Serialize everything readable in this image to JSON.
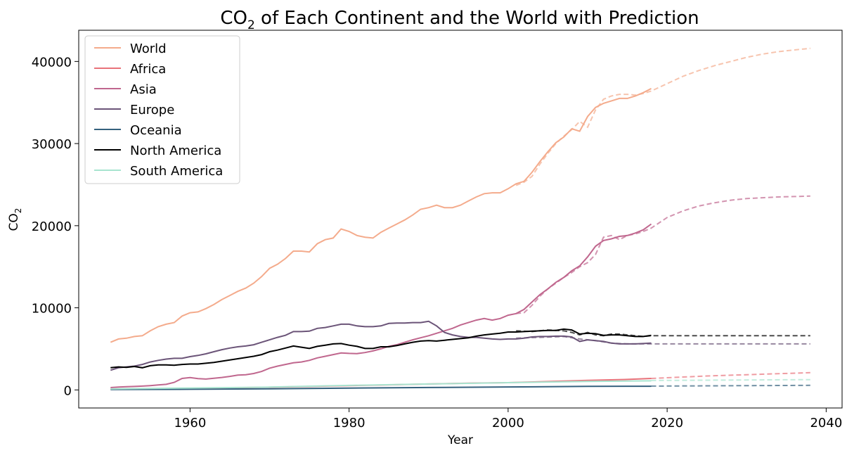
{
  "chart_data": {
    "type": "line",
    "title_main": "CO",
    "title_sub": "2",
    "title_rest": " of Each Continent and the World with Prediction",
    "xlabel": "Year",
    "ylabel_main": "CO",
    "ylabel_sub": "2",
    "xlim": [
      1946,
      2042
    ],
    "ylim": [
      -2200,
      43800
    ],
    "xticks": [
      1960,
      1980,
      2000,
      2020,
      2040
    ],
    "yticks": [
      0,
      10000,
      20000,
      30000,
      40000
    ],
    "grid": false,
    "legend_position": "top-left",
    "series": [
      {
        "name": "World",
        "color": "#f4ab8c",
        "x": [
          1950,
          1951,
          1952,
          1953,
          1954,
          1955,
          1956,
          1957,
          1958,
          1959,
          1960,
          1961,
          1962,
          1963,
          1964,
          1965,
          1966,
          1967,
          1968,
          1969,
          1970,
          1971,
          1972,
          1973,
          1974,
          1975,
          1976,
          1977,
          1978,
          1979,
          1980,
          1981,
          1982,
          1983,
          1984,
          1985,
          1986,
          1987,
          1988,
          1989,
          1990,
          1991,
          1992,
          1993,
          1994,
          1995,
          1996,
          1997,
          1998,
          1999,
          2000,
          2001,
          2002,
          2003,
          2004,
          2005,
          2006,
          2007,
          2008,
          2009,
          2010,
          2011,
          2012,
          2013,
          2014,
          2015,
          2016,
          2017,
          2018
        ],
        "y": [
          5800,
          6200,
          6300,
          6500,
          6600,
          7200,
          7700,
          8000,
          8200,
          9000,
          9400,
          9500,
          9900,
          10400,
          11000,
          11500,
          12000,
          12400,
          13000,
          13800,
          14800,
          15300,
          16000,
          16900,
          16900,
          16800,
          17800,
          18300,
          18500,
          19600,
          19300,
          18800,
          18600,
          18500,
          19200,
          19700,
          20200,
          20700,
          21300,
          22000,
          22200,
          22500,
          22200,
          22200,
          22500,
          23000,
          23500,
          23900,
          24000,
          24000,
          24500,
          25100,
          25400,
          26500,
          27800,
          29000,
          30100,
          30800,
          31800,
          31500,
          33300,
          34400,
          34900,
          35200,
          35500,
          35500,
          35800,
          36200,
          36700
        ]
      },
      {
        "name": "Africa",
        "color": "#e8727a",
        "x": [
          1950,
          1955,
          1960,
          1965,
          1970,
          1975,
          1980,
          1985,
          1990,
          1995,
          2000,
          2005,
          2010,
          2015,
          2018
        ],
        "y": [
          100,
          150,
          200,
          250,
          330,
          420,
          520,
          620,
          720,
          820,
          880,
          1020,
          1170,
          1280,
          1400
        ]
      },
      {
        "name": "Asia",
        "color": "#c0678e",
        "x": [
          1950,
          1951,
          1952,
          1953,
          1954,
          1955,
          1956,
          1957,
          1958,
          1959,
          1960,
          1961,
          1962,
          1963,
          1964,
          1965,
          1966,
          1967,
          1968,
          1969,
          1970,
          1971,
          1972,
          1973,
          1974,
          1975,
          1976,
          1977,
          1978,
          1979,
          1980,
          1981,
          1982,
          1983,
          1984,
          1985,
          1986,
          1987,
          1988,
          1989,
          1990,
          1991,
          1992,
          1993,
          1994,
          1995,
          1996,
          1997,
          1998,
          1999,
          2000,
          2001,
          2002,
          2003,
          2004,
          2005,
          2006,
          2007,
          2008,
          2009,
          2010,
          2011,
          2012,
          2013,
          2014,
          2015,
          2016,
          2017,
          2018
        ],
        "y": [
          280,
          340,
          390,
          420,
          460,
          520,
          600,
          680,
          920,
          1400,
          1500,
          1380,
          1320,
          1420,
          1520,
          1650,
          1800,
          1850,
          2000,
          2250,
          2650,
          2900,
          3100,
          3300,
          3400,
          3600,
          3900,
          4100,
          4300,
          4500,
          4450,
          4420,
          4550,
          4750,
          5000,
          5300,
          5500,
          5800,
          6100,
          6350,
          6600,
          6900,
          7200,
          7500,
          7900,
          8200,
          8500,
          8700,
          8500,
          8700,
          9100,
          9300,
          9800,
          10700,
          11600,
          12300,
          13100,
          13700,
          14500,
          15100,
          16200,
          17500,
          18200,
          18400,
          18700,
          18800,
          19100,
          19500,
          20200
        ]
      },
      {
        "name": "Europe",
        "color": "#6b5478",
        "x": [
          1950,
          1951,
          1952,
          1953,
          1954,
          1955,
          1956,
          1957,
          1958,
          1959,
          1960,
          1961,
          1962,
          1963,
          1964,
          1965,
          1966,
          1967,
          1968,
          1969,
          1970,
          1971,
          1972,
          1973,
          1974,
          1975,
          1976,
          1977,
          1978,
          1979,
          1980,
          1981,
          1982,
          1983,
          1984,
          1985,
          1986,
          1987,
          1988,
          1989,
          1990,
          1991,
          1992,
          1993,
          1994,
          1995,
          1996,
          1997,
          1998,
          1999,
          2000,
          2001,
          2002,
          2003,
          2004,
          2005,
          2006,
          2007,
          2008,
          2009,
          2010,
          2011,
          2012,
          2013,
          2014,
          2015,
          2016,
          2017,
          2018
        ],
        "y": [
          2400,
          2700,
          2800,
          2900,
          3100,
          3400,
          3600,
          3750,
          3850,
          3850,
          4050,
          4200,
          4400,
          4650,
          4900,
          5100,
          5250,
          5350,
          5500,
          5800,
          6100,
          6400,
          6650,
          7100,
          7100,
          7150,
          7500,
          7600,
          7800,
          8000,
          8000,
          7800,
          7700,
          7700,
          7800,
          8100,
          8150,
          8150,
          8200,
          8200,
          8350,
          7800,
          7000,
          6700,
          6500,
          6400,
          6400,
          6300,
          6200,
          6150,
          6200,
          6200,
          6300,
          6450,
          6500,
          6500,
          6550,
          6550,
          6450,
          5900,
          6100,
          6000,
          5900,
          5700,
          5600,
          5600,
          5600,
          5650,
          5700
        ]
      },
      {
        "name": "Oceania",
        "color": "#35617e",
        "x": [
          1950,
          1960,
          1970,
          1980,
          1990,
          2000,
          2010,
          2018
        ],
        "y": [
          50,
          80,
          140,
          220,
          290,
          360,
          430,
          450
        ]
      },
      {
        "name": "North America",
        "color": "#000000",
        "x": [
          1950,
          1951,
          1952,
          1953,
          1954,
          1955,
          1956,
          1957,
          1958,
          1959,
          1960,
          1961,
          1962,
          1963,
          1964,
          1965,
          1966,
          1967,
          1968,
          1969,
          1970,
          1971,
          1972,
          1973,
          1974,
          1975,
          1976,
          1977,
          1978,
          1979,
          1980,
          1981,
          1982,
          1983,
          1984,
          1985,
          1986,
          1987,
          1988,
          1989,
          1990,
          1991,
          1992,
          1993,
          1994,
          1995,
          1996,
          1997,
          1998,
          1999,
          2000,
          2001,
          2002,
          2003,
          2004,
          2005,
          2006,
          2007,
          2008,
          2009,
          2010,
          2011,
          2012,
          2013,
          2014,
          2015,
          2016,
          2017,
          2018
        ],
        "y": [
          2700,
          2800,
          2750,
          2850,
          2700,
          2950,
          3050,
          3050,
          3000,
          3100,
          3150,
          3150,
          3250,
          3350,
          3500,
          3650,
          3800,
          3950,
          4100,
          4300,
          4650,
          4850,
          5100,
          5350,
          5200,
          5050,
          5300,
          5450,
          5600,
          5650,
          5450,
          5300,
          5050,
          5050,
          5250,
          5250,
          5400,
          5600,
          5800,
          5950,
          6000,
          5950,
          6050,
          6150,
          6250,
          6350,
          6550,
          6700,
          6800,
          6900,
          7050,
          7050,
          7100,
          7150,
          7200,
          7250,
          7250,
          7400,
          7300,
          6800,
          6900,
          6850,
          6650,
          6700,
          6700,
          6600,
          6500,
          6500,
          6650
        ]
      },
      {
        "name": "South America",
        "color": "#a8e4cf",
        "x": [
          1950,
          1960,
          1970,
          1980,
          1990,
          2000,
          2010,
          2018
        ],
        "y": [
          120,
          230,
          340,
          550,
          720,
          880,
          1030,
          1110
        ]
      }
    ],
    "predictions": [
      {
        "name": "World",
        "color": "#f4ab8c",
        "x": [
          2001,
          2002,
          2003,
          2004,
          2005,
          2006,
          2007,
          2008,
          2009,
          2010,
          2011,
          2012,
          2013,
          2014,
          2015,
          2016,
          2017,
          2018,
          2020,
          2022,
          2024,
          2026,
          2028,
          2030,
          2032,
          2034,
          2036,
          2038
        ],
        "y": [
          24900,
          25300,
          26000,
          27500,
          28800,
          30000,
          30900,
          31700,
          32700,
          32000,
          34100,
          35400,
          35800,
          36000,
          36000,
          35900,
          36100,
          36400,
          37300,
          38200,
          38900,
          39500,
          40000,
          40500,
          40900,
          41200,
          41400,
          41600
        ]
      },
      {
        "name": "Asia",
        "color": "#c0678e",
        "x": [
          2001,
          2002,
          2003,
          2004,
          2005,
          2006,
          2007,
          2008,
          2009,
          2010,
          2011,
          2012,
          2013,
          2014,
          2015,
          2016,
          2017,
          2018,
          2020,
          2022,
          2024,
          2026,
          2028,
          2030,
          2032,
          2034,
          2036,
          2038
        ],
        "y": [
          9300,
          9400,
          10300,
          11400,
          12300,
          13000,
          13700,
          14300,
          15000,
          15500,
          16500,
          18600,
          18800,
          18300,
          18800,
          19000,
          19300,
          19700,
          21000,
          21800,
          22400,
          22800,
          23100,
          23300,
          23400,
          23500,
          23550,
          23600
        ]
      },
      {
        "name": "Europe",
        "color": "#6b5478",
        "x": [
          2001,
          2004,
          2007,
          2009,
          2011,
          2013,
          2015,
          2018,
          2025,
          2038
        ],
        "y": [
          6300,
          6400,
          6500,
          6200,
          6000,
          5700,
          5600,
          5600,
          5600,
          5600
        ]
      },
      {
        "name": "North America",
        "color": "#000000",
        "x": [
          2001,
          2003,
          2005,
          2007,
          2008,
          2009,
          2010,
          2011,
          2012,
          2013,
          2014,
          2015,
          2016,
          2017,
          2018,
          2025,
          2038
        ],
        "y": [
          7200,
          7100,
          7300,
          7200,
          7000,
          6700,
          7000,
          6700,
          6600,
          6800,
          6800,
          6700,
          6600,
          6500,
          6600,
          6600,
          6600
        ]
      },
      {
        "name": "Africa",
        "color": "#e8727a",
        "x": [
          2018,
          2025,
          2038
        ],
        "y": [
          1400,
          1700,
          2100
        ]
      },
      {
        "name": "South America",
        "color": "#a8e4cf",
        "x": [
          2018,
          2038
        ],
        "y": [
          1150,
          1250
        ]
      },
      {
        "name": "Oceania",
        "color": "#35617e",
        "x": [
          2018,
          2038
        ],
        "y": [
          460,
          560
        ]
      }
    ]
  }
}
